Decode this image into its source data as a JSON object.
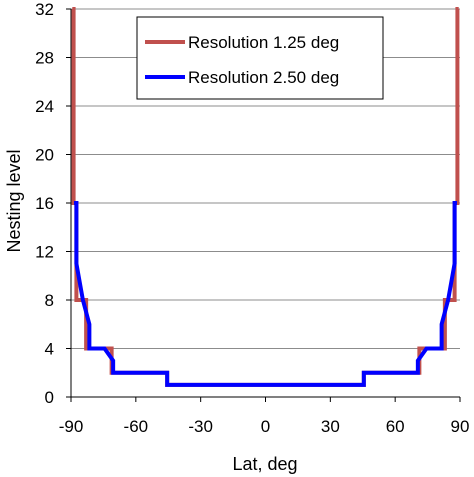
{
  "chart_data": {
    "type": "line",
    "xlabel": "Lat, deg",
    "ylabel": "Nesting level",
    "xlim": [
      -90,
      90
    ],
    "ylim": [
      0,
      32
    ],
    "x_ticks": [
      -90,
      -60,
      -30,
      0,
      30,
      60,
      90
    ],
    "y_ticks": [
      0,
      4,
      8,
      12,
      16,
      20,
      24,
      28,
      32
    ],
    "x_tick_labels": [
      "-90",
      "-60",
      "-30",
      "0",
      "30",
      "60",
      "90"
    ],
    "y_tick_labels": [
      "0",
      "4",
      "8",
      "12",
      "16",
      "20",
      "24",
      "28",
      "32"
    ],
    "grid": "horizontal",
    "legend_position": "top-center",
    "series": [
      {
        "name": "Resolution 1.25 deg",
        "color": "#c0504d",
        "x": [
          -89.4,
          -88.8,
          -88.8,
          -87.5,
          -87.5,
          -86.5,
          -86.5,
          -83.0,
          -83.0,
          -80.5,
          -80.5,
          -71.2,
          -71.2,
          -45.5,
          -45.5,
          45.5,
          45.5,
          71.2,
          71.2,
          80.5,
          80.5,
          83.0,
          83.0,
          86.5,
          86.5,
          87.5,
          87.5,
          88.8,
          88.8,
          89.4
        ],
        "y": [
          32,
          32,
          16,
          16,
          8,
          8,
          8,
          8,
          4,
          4,
          4,
          4,
          2,
          2,
          1,
          1,
          2,
          2,
          4,
          4,
          4,
          4,
          8,
          8,
          8,
          8,
          16,
          16,
          32,
          32
        ]
      },
      {
        "name": "Resolution 2.50 deg",
        "color": "#0000ff",
        "x": [
          -88.6,
          -87.5,
          -87.5,
          -84.5,
          -84.5,
          -81.5,
          -81.5,
          -74.5,
          -74.5,
          -70.5,
          -70.5,
          -45.5,
          -45.5,
          45.5,
          45.5,
          70.5,
          70.5,
          74.5,
          74.5,
          81.5,
          81.5,
          84.5,
          84.5,
          87.5,
          87.5,
          88.6
        ],
        "y": [
          16,
          16,
          11,
          8,
          8,
          6,
          4,
          4,
          4,
          3,
          2,
          2,
          1,
          1,
          2,
          2,
          3,
          4,
          4,
          4,
          6,
          8,
          8,
          11,
          16,
          16
        ]
      }
    ]
  }
}
